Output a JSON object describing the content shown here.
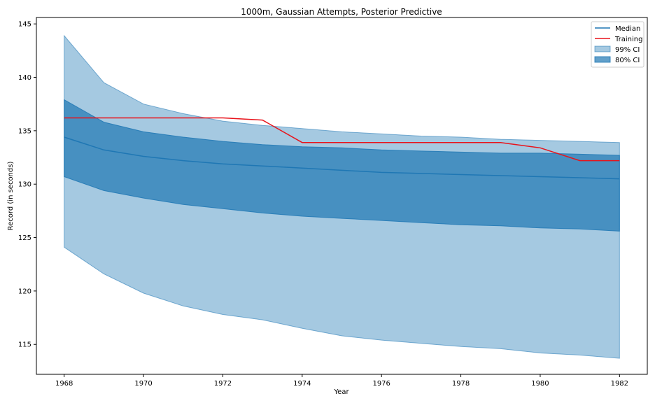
{
  "chart_data": {
    "type": "area",
    "title": "1000m, Gaussian Attempts, Posterior Predictive",
    "xlabel": "Year",
    "ylabel": "Record (in seconds)",
    "xlim": [
      1967.3,
      1982.7
    ],
    "ylim": [
      112.2,
      145.6
    ],
    "xticks": [
      1968,
      1970,
      1972,
      1974,
      1976,
      1978,
      1980,
      1982
    ],
    "yticks": [
      115,
      120,
      125,
      130,
      135,
      140,
      145
    ],
    "grid": false,
    "legend_position": "top-right",
    "x": [
      1968,
      1969,
      1970,
      1971,
      1972,
      1973,
      1974,
      1975,
      1976,
      1977,
      1978,
      1979,
      1980,
      1981,
      1982
    ],
    "series": [
      {
        "name": "Median",
        "kind": "line",
        "color": "#1f77b4",
        "values": [
          134.4,
          133.2,
          132.6,
          132.2,
          131.9,
          131.7,
          131.5,
          131.3,
          131.1,
          131.0,
          130.9,
          130.8,
          130.7,
          130.6,
          130.5
        ]
      },
      {
        "name": "Training",
        "kind": "line",
        "color": "#e8131b",
        "x": [
          1968,
          1969,
          1970,
          1971,
          1972,
          1973,
          1974,
          1975,
          1976,
          1977,
          1978,
          1979,
          1980,
          1981,
          1982
        ],
        "values": [
          136.2,
          136.2,
          136.2,
          136.2,
          136.2,
          136.0,
          133.9,
          133.9,
          133.9,
          133.9,
          133.9,
          133.9,
          133.4,
          132.2,
          132.2
        ]
      },
      {
        "name": "99% CI",
        "kind": "band",
        "color": "#1f77b4",
        "opacity": 0.4,
        "lower": [
          124.1,
          121.6,
          119.8,
          118.6,
          117.8,
          117.3,
          116.5,
          115.8,
          115.4,
          115.1,
          114.8,
          114.6,
          114.2,
          114.0,
          113.7
        ],
        "upper": [
          143.9,
          139.5,
          137.5,
          136.6,
          135.9,
          135.5,
          135.2,
          134.9,
          134.7,
          134.5,
          134.4,
          134.2,
          134.1,
          134.0,
          133.9
        ]
      },
      {
        "name": "80% CI",
        "kind": "band",
        "color": "#1f77b4",
        "opacity": 0.7,
        "lower": [
          130.7,
          129.4,
          128.7,
          128.1,
          127.7,
          127.3,
          127.0,
          126.8,
          126.6,
          126.4,
          126.2,
          126.1,
          125.9,
          125.8,
          125.6
        ],
        "upper": [
          137.9,
          135.8,
          134.9,
          134.4,
          134.0,
          133.7,
          133.5,
          133.4,
          133.2,
          133.1,
          133.0,
          132.9,
          132.9,
          132.8,
          132.7
        ]
      }
    ]
  }
}
